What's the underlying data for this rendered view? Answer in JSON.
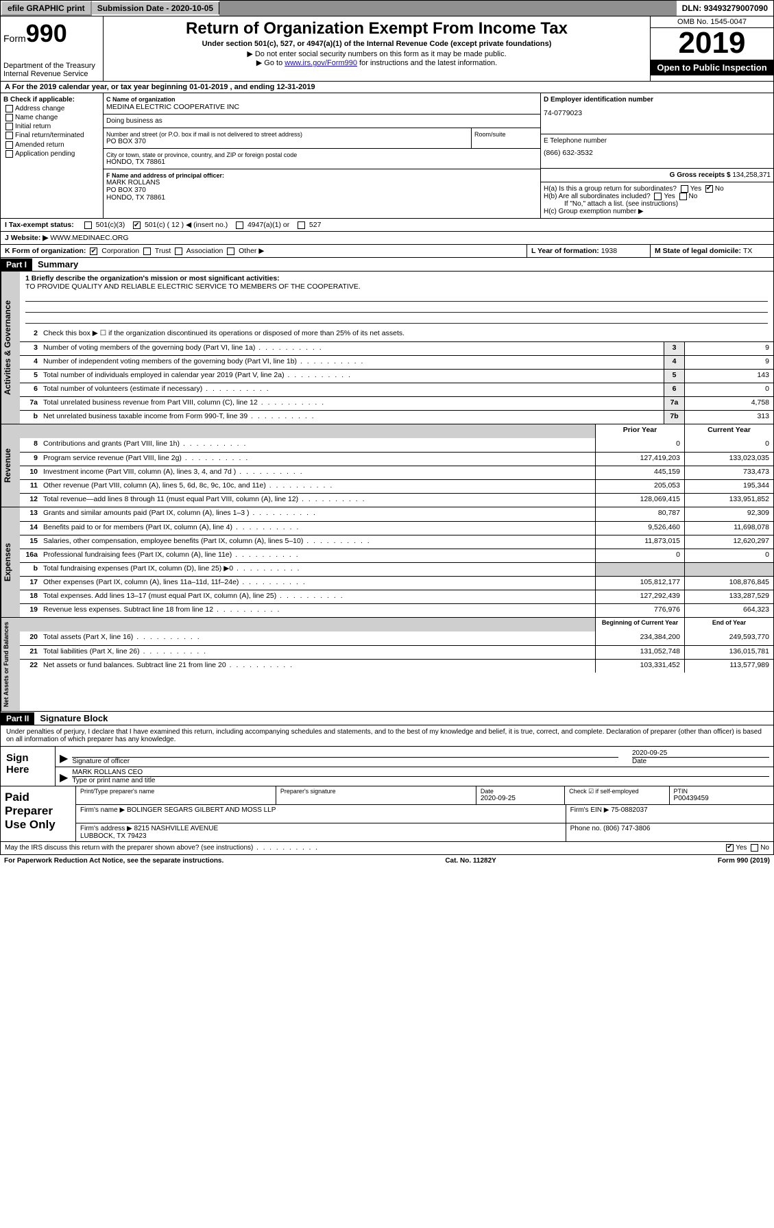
{
  "topbar": {
    "efile": "efile GRAPHIC print",
    "subdate_label": "Submission Date - ",
    "subdate": "2020-10-05",
    "dln_label": "DLN: ",
    "dln": "93493279007090"
  },
  "header": {
    "form_prefix": "Form",
    "form_num": "990",
    "dept": "Department of the Treasury\nInternal Revenue Service",
    "title": "Return of Organization Exempt From Income Tax",
    "sub1": "Under section 501(c), 527, or 4947(a)(1) of the Internal Revenue Code (except private foundations)",
    "sub2": "▶ Do not enter social security numbers on this form as it may be made public.",
    "sub3_pre": "▶ Go to ",
    "sub3_link": "www.irs.gov/Form990",
    "sub3_post": " for instructions and the latest information.",
    "omb": "OMB No. 1545-0047",
    "year": "2019",
    "open": "Open to Public Inspection"
  },
  "rowA": "A For the 2019 calendar year, or tax year beginning 01-01-2019   , and ending 12-31-2019",
  "colB": {
    "caption": "B Check if applicable:",
    "items": [
      "Address change",
      "Name change",
      "Initial return",
      "Final return/terminated",
      "Amended return",
      "Application pending"
    ]
  },
  "org": {
    "name_caption": "C Name of organization",
    "name": "MEDINA ELECTRIC COOPERATIVE INC",
    "dba_caption": "Doing business as",
    "addr_caption": "Number and street (or P.O. box if mail is not delivered to street address)",
    "room_caption": "Room/suite",
    "addr": "PO BOX 370",
    "city_caption": "City or town, state or province, country, and ZIP or foreign postal code",
    "city": "HONDO, TX  78861",
    "officer_caption": "F Name and address of principal officer:",
    "officer": "MARK ROLLANS\nPO BOX 370\nHONDO, TX  78861"
  },
  "right": {
    "ein_caption": "D Employer identification number",
    "ein": "74-0779023",
    "phone_caption": "E Telephone number",
    "phone": "(866) 632-3532",
    "gross_caption": "G Gross receipts $ ",
    "gross": "134,258,371",
    "ha": "H(a)  Is this a group return for subordinates?",
    "hb": "H(b)  Are all subordinates included?",
    "hb_note": "If \"No,\" attach a list. (see instructions)",
    "hc": "H(c)  Group exemption number ▶"
  },
  "rowI": {
    "label": "I  Tax-exempt status:",
    "opt1": "501(c)(3)",
    "opt2": "501(c) ( 12 ) ◀ (insert no.)",
    "opt3": "4947(a)(1) or",
    "opt4": "527"
  },
  "rowJ": {
    "label": "J  Website: ▶ ",
    "val": "WWW.MEDINAEC.ORG"
  },
  "rowK": {
    "label": "K Form of organization:",
    "opts": [
      "Corporation",
      "Trust",
      "Association",
      "Other ▶"
    ]
  },
  "rowL": {
    "label": "L Year of formation: ",
    "val": "1938"
  },
  "rowM": {
    "label": "M State of legal domicile: ",
    "val": "TX"
  },
  "part1": {
    "hdr": "Part I",
    "title": "Summary"
  },
  "mission": {
    "q": "1  Briefly describe the organization's mission or most significant activities:",
    "text": "TO PROVIDE QUALITY AND RELIABLE ELECTRIC SERVICE TO MEMBERS OF THE COOPERATIVE."
  },
  "gov_side": "Activities & Governance",
  "lines_top": [
    {
      "n": "2",
      "t": "Check this box ▶ ☐  if the organization discontinued its operations or disposed of more than 25% of its net assets."
    },
    {
      "n": "3",
      "t": "Number of voting members of the governing body (Part VI, line 1a)",
      "box": "3",
      "v": "9"
    },
    {
      "n": "4",
      "t": "Number of independent voting members of the governing body (Part VI, line 1b)",
      "box": "4",
      "v": "9"
    },
    {
      "n": "5",
      "t": "Total number of individuals employed in calendar year 2019 (Part V, line 2a)",
      "box": "5",
      "v": "143"
    },
    {
      "n": "6",
      "t": "Total number of volunteers (estimate if necessary)",
      "box": "6",
      "v": "0"
    },
    {
      "n": "7a",
      "t": "Total unrelated business revenue from Part VIII, column (C), line 12",
      "box": "7a",
      "v": "4,758"
    },
    {
      "n": " b",
      "t": "Net unrelated business taxable income from Form 990-T, line 39",
      "box": "7b",
      "v": "313"
    }
  ],
  "col_hdrs": {
    "prior": "Prior Year",
    "current": "Current Year"
  },
  "rev_side": "Revenue",
  "revenue": [
    {
      "n": "8",
      "t": "Contributions and grants (Part VIII, line 1h)",
      "p": "0",
      "c": "0"
    },
    {
      "n": "9",
      "t": "Program service revenue (Part VIII, line 2g)",
      "p": "127,419,203",
      "c": "133,023,035"
    },
    {
      "n": "10",
      "t": "Investment income (Part VIII, column (A), lines 3, 4, and 7d )",
      "p": "445,159",
      "c": "733,473"
    },
    {
      "n": "11",
      "t": "Other revenue (Part VIII, column (A), lines 5, 6d, 8c, 9c, 10c, and 11e)",
      "p": "205,053",
      "c": "195,344"
    },
    {
      "n": "12",
      "t": "Total revenue—add lines 8 through 11 (must equal Part VIII, column (A), line 12)",
      "p": "128,069,415",
      "c": "133,951,852"
    }
  ],
  "exp_side": "Expenses",
  "expenses": [
    {
      "n": "13",
      "t": "Grants and similar amounts paid (Part IX, column (A), lines 1–3 )",
      "p": "80,787",
      "c": "92,309"
    },
    {
      "n": "14",
      "t": "Benefits paid to or for members (Part IX, column (A), line 4)",
      "p": "9,526,460",
      "c": "11,698,078"
    },
    {
      "n": "15",
      "t": "Salaries, other compensation, employee benefits (Part IX, column (A), lines 5–10)",
      "p": "11,873,015",
      "c": "12,620,297"
    },
    {
      "n": "16a",
      "t": "Professional fundraising fees (Part IX, column (A), line 11e)",
      "p": "0",
      "c": "0"
    },
    {
      "n": "b",
      "t": "Total fundraising expenses (Part IX, column (D), line 25) ▶0",
      "p": "",
      "c": "",
      "shade": true
    },
    {
      "n": "17",
      "t": "Other expenses (Part IX, column (A), lines 11a–11d, 11f–24e)",
      "p": "105,812,177",
      "c": "108,876,845"
    },
    {
      "n": "18",
      "t": "Total expenses. Add lines 13–17 (must equal Part IX, column (A), line 25)",
      "p": "127,292,439",
      "c": "133,287,529"
    },
    {
      "n": "19",
      "t": "Revenue less expenses. Subtract line 18 from line 12",
      "p": "776,976",
      "c": "664,323"
    }
  ],
  "na_side": "Net Assets or Fund Balances",
  "na_hdrs": {
    "beg": "Beginning of Current Year",
    "end": "End of Year"
  },
  "netassets": [
    {
      "n": "20",
      "t": "Total assets (Part X, line 16)",
      "p": "234,384,200",
      "c": "249,593,770"
    },
    {
      "n": "21",
      "t": "Total liabilities (Part X, line 26)",
      "p": "131,052,748",
      "c": "136,015,781"
    },
    {
      "n": "22",
      "t": "Net assets or fund balances. Subtract line 21 from line 20",
      "p": "103,331,452",
      "c": "113,577,989"
    }
  ],
  "part2": {
    "hdr": "Part II",
    "title": "Signature Block"
  },
  "sig": {
    "perjury": "Under penalties of perjury, I declare that I have examined this return, including accompanying schedules and statements, and to the best of my knowledge and belief, it is true, correct, and complete. Declaration of preparer (other than officer) is based on all information of which preparer has any knowledge.",
    "sign_here": "Sign Here",
    "sig_officer": "Signature of officer",
    "date": "2020-09-25",
    "date_label": "Date",
    "name": "MARK ROLLANS CEO",
    "name_caption": "Type or print name and title"
  },
  "prep": {
    "label": "Paid Preparer Use Only",
    "h1": "Print/Type preparer's name",
    "h2": "Preparer's signature",
    "h3": "Date",
    "h3v": "2020-09-25",
    "h4": "Check ☑ if self-employed",
    "h5": "PTIN",
    "h5v": "P00439459",
    "firm_name_lbl": "Firm's name    ▶ ",
    "firm_name": "BOLINGER SEGARS GILBERT AND MOSS LLP",
    "firm_ein_lbl": "Firm's EIN ▶ ",
    "firm_ein": "75-0882037",
    "firm_addr_lbl": "Firm's address ▶ ",
    "firm_addr": "8215 NASHVILLE AVENUE\nLUBBOCK, TX  79423",
    "phone_lbl": "Phone no. ",
    "phone": "(806) 747-3806"
  },
  "footer": {
    "discuss": "May the IRS discuss this return with the preparer shown above? (see instructions)",
    "pra": "For Paperwork Reduction Act Notice, see the separate instructions.",
    "cat": "Cat. No. 11282Y",
    "form": "Form 990 (2019)"
  }
}
